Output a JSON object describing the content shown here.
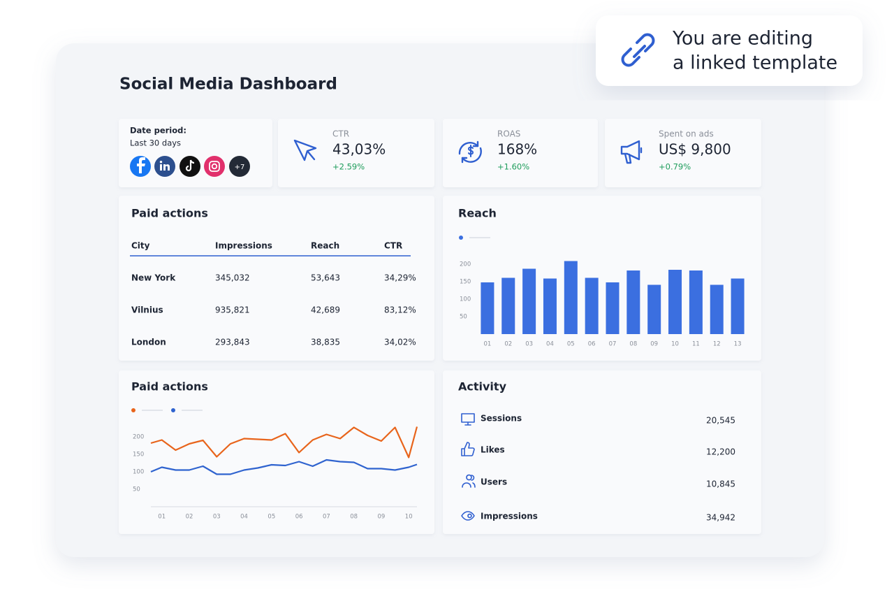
{
  "banner": {
    "lines": [
      "You are editing",
      "a linked template"
    ]
  },
  "header": {
    "title": "Social Media Dashboard"
  },
  "date_period": {
    "label": "Date period:",
    "value": "Last 30 days",
    "more": "+7"
  },
  "kpis": [
    {
      "label": "CTR",
      "value": "43,03%",
      "change": "+2.59%"
    },
    {
      "label": "ROAS",
      "value": "168%",
      "change": "+1.60%"
    },
    {
      "label": "Spent on ads",
      "value": "US$ 9,800",
      "change": "+0.79%"
    }
  ],
  "paid_table": {
    "title": "Paid actions",
    "columns": [
      "City",
      "Impressions",
      "Reach",
      "CTR"
    ],
    "rows": [
      [
        "New York",
        "345,032",
        "53,643",
        "34,29%"
      ],
      [
        "Vilnius",
        "935,821",
        "42,689",
        "83,12%"
      ],
      [
        "London",
        "293,843",
        "38,835",
        "34,02%"
      ]
    ]
  },
  "reach_chart": {
    "type": "bar",
    "title": "Reach",
    "categories": [
      "01",
      "02",
      "03",
      "04",
      "05",
      "06",
      "07",
      "08",
      "09",
      "10",
      "11",
      "12",
      "13"
    ],
    "values": [
      148,
      161,
      187,
      159,
      209,
      161,
      148,
      182,
      141,
      184,
      182,
      141,
      159
    ],
    "color": "#3b6fe0",
    "ylim": [
      0,
      220
    ],
    "yticks": [
      50,
      100,
      150,
      200
    ]
  },
  "line_chart": {
    "type": "line",
    "title": "Paid actions",
    "x": [
      0.6,
      1.0,
      1.5,
      2.0,
      2.5,
      3.0,
      3.5,
      4.0,
      4.5,
      5.0,
      5.5,
      6.0,
      6.5,
      7.0,
      7.5,
      8.0,
      8.5,
      9.0,
      9.5,
      10.0,
      10.3
    ],
    "series": [
      {
        "color": "#e8641b",
        "values": [
          182,
          191,
          162,
          180,
          190,
          143,
          180,
          195,
          193,
          191,
          209,
          155,
          191,
          207,
          195,
          227,
          204,
          188,
          227,
          141,
          229
        ]
      },
      {
        "color": "#2f63cf",
        "values": [
          100,
          113,
          105,
          105,
          116,
          93,
          93,
          105,
          111,
          120,
          118,
          129,
          116,
          134,
          129,
          127,
          109,
          109,
          105,
          113,
          121
        ]
      }
    ],
    "xlim": [
      0.6,
      10.3
    ],
    "xticks": [
      {
        "value": 1,
        "label": "01"
      },
      {
        "value": 2,
        "label": "02"
      },
      {
        "value": 3,
        "label": "03"
      },
      {
        "value": 4,
        "label": "04"
      },
      {
        "value": 5,
        "label": "05"
      },
      {
        "value": 6,
        "label": "06"
      },
      {
        "value": 7,
        "label": "07"
      },
      {
        "value": 8,
        "label": "08"
      },
      {
        "value": 9,
        "label": "09"
      },
      {
        "value": 10,
        "label": "10"
      }
    ],
    "ylim": [
      0,
      240
    ],
    "yticks": [
      50,
      100,
      150,
      200
    ]
  },
  "activity": {
    "title": "Activity",
    "items": [
      {
        "label": "Sessions",
        "value": "20,545"
      },
      {
        "label": "Likes",
        "value": "12,200"
      },
      {
        "label": "Users",
        "value": "10,845"
      },
      {
        "label": "Impressions",
        "value": "34,942"
      }
    ]
  }
}
